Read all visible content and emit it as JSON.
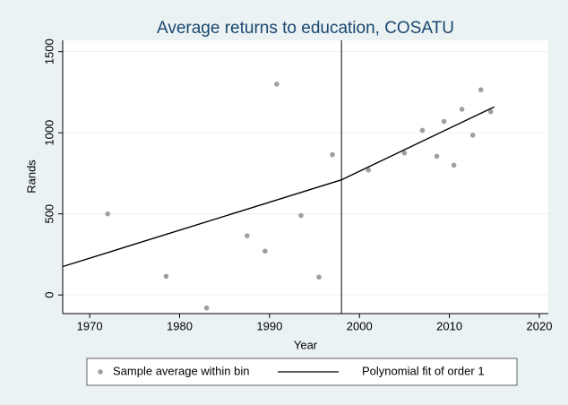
{
  "chart_data": {
    "type": "scatter",
    "title": "Average returns to education, COSATU",
    "x_label": "Year",
    "y_label": "Rands",
    "xlim": [
      1967,
      2021
    ],
    "xticks": [
      1970,
      1980,
      1990,
      2000,
      2010,
      2020
    ],
    "ylim": [
      -115,
      1570
    ],
    "yticks": [
      0,
      500,
      1000,
      1500
    ],
    "grid": true,
    "vline": 1998,
    "legend": "bottom",
    "series": [
      {
        "name": "Sample average within bin",
        "color": "#a0a0a0",
        "mode": "markers",
        "x": [
          1972,
          1978.5,
          1983,
          1987.5,
          1989.5,
          1990.8,
          1993.5,
          1995.5,
          1997,
          2001,
          2005,
          2007,
          2008.6,
          2009.4,
          2010.5,
          2011.4,
          2012.6,
          2013.5,
          2014.6
        ],
        "values": [
          500,
          115,
          -80,
          365,
          270,
          1300,
          490,
          110,
          865,
          770,
          875,
          1015,
          855,
          1070,
          800,
          1145,
          985,
          1265,
          1130
        ]
      },
      {
        "name": "Polynomial fit of order 1",
        "color": "#000000",
        "mode": "line",
        "x": [
          1967,
          1998,
          2015
        ],
        "values": [
          175,
          710,
          1160
        ]
      }
    ]
  }
}
